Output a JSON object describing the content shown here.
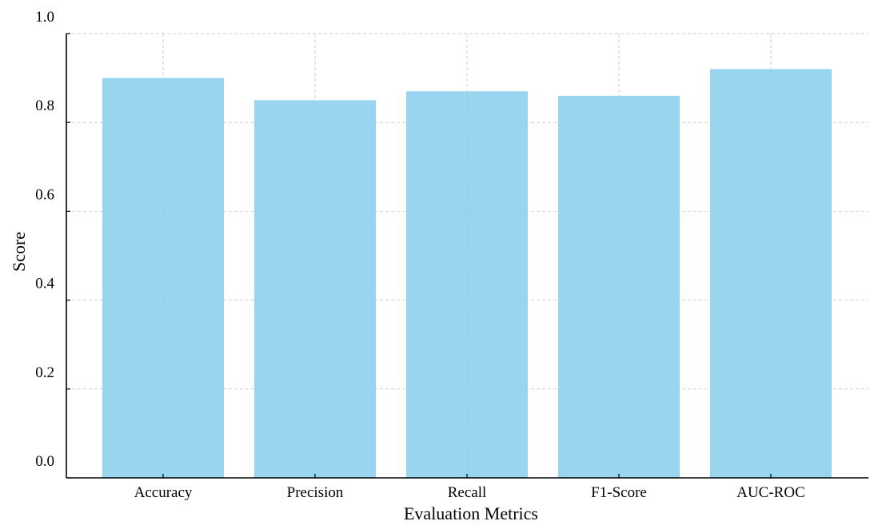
{
  "chart_data": {
    "type": "bar",
    "categories": [
      "Accuracy",
      "Precision",
      "Recall",
      "F1-Score",
      "AUC-ROC"
    ],
    "values": [
      0.9,
      0.85,
      0.87,
      0.86,
      0.92
    ],
    "title": "",
    "xlabel": "Evaluation Metrics",
    "ylabel": "Score",
    "ylim": [
      0,
      1.0
    ],
    "yticks": [
      "0.0",
      "0.2",
      "0.4",
      "0.6",
      "0.8",
      "1.0"
    ],
    "grid": true,
    "bar_color": "#87ceeb"
  }
}
